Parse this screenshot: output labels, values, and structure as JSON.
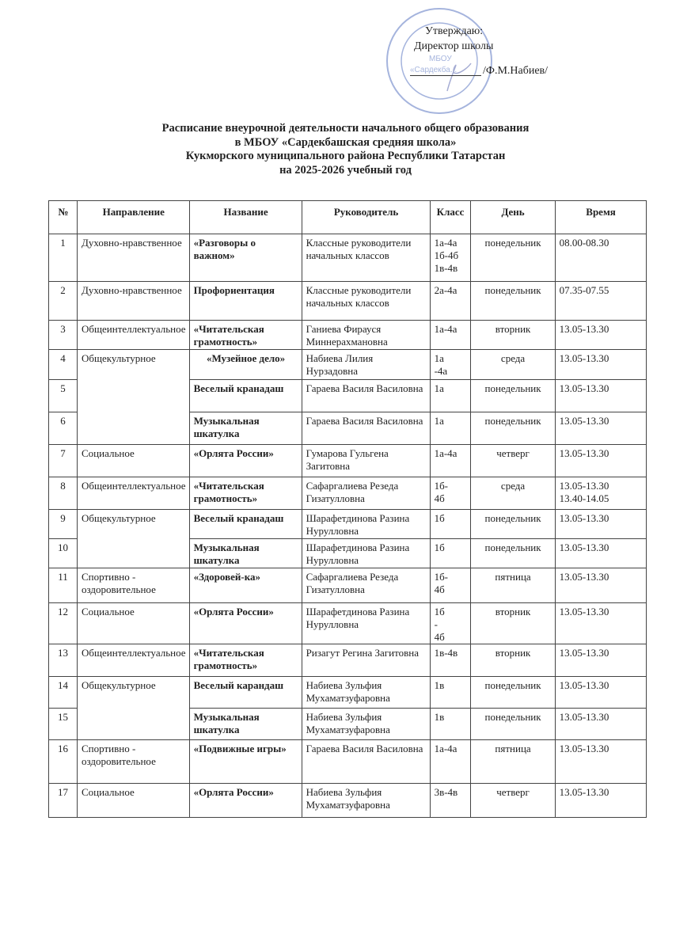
{
  "approval": {
    "line1": "Утверждаю:",
    "line2": "Директор школы",
    "signatory": "/Ф.М.Набиев/",
    "stamp_text": "МБОУ «Сардекбашская средняя школа» Кукморского муниципального района"
  },
  "title": {
    "line1": "Расписание внеурочной деятельности начального общего образования",
    "line2": "в МБОУ «Сардекбашская средняя школа»",
    "line3": "Кукморского муниципального района Республики Татарстан",
    "line4": "на 2025-2026 учебный год"
  },
  "table": {
    "headers": [
      "№",
      "Направление",
      "Название",
      "Руководитель",
      "Класс",
      "День",
      "Время"
    ],
    "rows": [
      {
        "n": "1",
        "dir": "Духовно-нравственное",
        "name": "«Разговоры о важном»",
        "lead": "Классные руководители начальных классов",
        "cls": "1а-4а 1б-4б 1в-4в",
        "day": "понедельник",
        "time": "08.00-08.30"
      },
      {
        "n": "2",
        "dir": "Духовно-нравственное",
        "name": "Профориентация",
        "lead": "Классные руководители начальных классов",
        "cls": "2а-4а",
        "day": "понедельник",
        "time": "07.35-07.55"
      },
      {
        "n": "3",
        "dir": "Общеинтеллектуальное",
        "name": "«Читательская грамотность»",
        "lead": "Ганиева Фирауся Миннерахмановна",
        "cls": "1а-4а",
        "day": "вторник",
        "time": "13.05-13.30"
      },
      {
        "n": "4",
        "dir": "Общекультурное",
        "name": "«Музейное дело»",
        "lead": "Набиева Лилия Нурзадовна",
        "cls": "1а -4а",
        "day": "среда",
        "time": "13.05-13.30"
      },
      {
        "n": "5",
        "dir": "",
        "name": "Веселый кранадаш",
        "lead": "Гараева Василя Василовна",
        "cls": "1а",
        "day": "понедельник",
        "time": "13.05-13.30"
      },
      {
        "n": "6",
        "dir": "",
        "name": "Музыкальная шкатулка",
        "lead": "Гараева Василя Василовна",
        "cls": "1а",
        "day": "понедельник",
        "time": "13.05-13.30"
      },
      {
        "n": "7",
        "dir": "Социальное",
        "name": "«Орлята России»",
        "lead": "Гумарова Гульгена Загитовна",
        "cls": "1а-4а",
        "day": "четверг",
        "time": "13.05-13.30"
      },
      {
        "n": "8",
        "dir": "Общеинтеллектуальное",
        "name": "«Читательская грамотность»",
        "lead": "Сафаргалиева Резеда Гизатулловна",
        "cls": "1б- 4б",
        "day": "среда",
        "time": "13.05-13.30 13.40-14.05"
      },
      {
        "n": "9",
        "dir": "Общекультурное",
        "name": "Веселый кранадаш",
        "lead": "Шарафетдинова Разина Нурулловна",
        "cls": "1б",
        "day": "понедельник",
        "time": "13.05-13.30"
      },
      {
        "n": "10",
        "dir": "",
        "name": "Музыкальная шкатулка",
        "lead": "Шарафетдинова Разина Нурулловна",
        "cls": "1б",
        "day": "понедельник",
        "time": "13.05-13.30"
      },
      {
        "n": "11",
        "dir": "Спортивно - оздоровительное",
        "name": "«Здоровей-ка»",
        "lead": "Сафаргалиева Резеда Гизатулловна",
        "cls": "1б- 4б",
        "day": "пятница",
        "time": "13.05-13.30"
      },
      {
        "n": "12",
        "dir": "Социальное",
        "name": "«Орлята России»",
        "lead": "Шарафетдинова Разина Нурулловна",
        "cls": "1б - 4б",
        "day": "вторник",
        "time": "13.05-13.30"
      },
      {
        "n": "13",
        "dir": "Общеинтеллектуальное",
        "name": "«Читательская грамотность»",
        "lead": "Ризагут Регина Загитовна",
        "cls": "1в-4в",
        "day": "вторник",
        "time": "13.05-13.30"
      },
      {
        "n": "14",
        "dir": "Общекультурное",
        "name": "Веселый карандаш",
        "lead": "Набиева Зульфия Мухаматзуфаровна",
        "cls": "1в",
        "day": "понедельник",
        "time": "13.05-13.30"
      },
      {
        "n": "15",
        "dir": "",
        "name": "Музыкальная шкатулка",
        "lead": "Набиева Зульфия Мухаматзуфаровна",
        "cls": "1в",
        "day": "понедельник",
        "time": "13.05-13.30"
      },
      {
        "n": "16",
        "dir": "Спортивно - оздоровительное",
        "name": "«Подвижные игры»",
        "lead": "Гараева Василя Василовна",
        "cls": "1а-4а",
        "day": "пятница",
        "time": "13.05-13.30"
      },
      {
        "n": "17",
        "dir": "Социальное",
        "name": "«Орлята России»",
        "lead": "Набиева Зульфия Мухаматзуфаровна",
        "cls": "3в-4в",
        "day": "четверг",
        "time": "13.05-13.30"
      }
    ]
  }
}
